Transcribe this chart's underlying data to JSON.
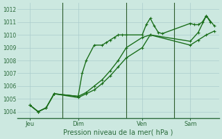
{
  "xlabel": "Pression niveau de la mer( hPa )",
  "bg_color": "#cce8e0",
  "grid_color": "#aacccc",
  "line_color": "#1a6e1a",
  "vline_color": "#2a5a2a",
  "axis_color": "#2a6a3a",
  "ylim": [
    1003.5,
    1012.5
  ],
  "yticks": [
    1004,
    1005,
    1006,
    1007,
    1008,
    1009,
    1010,
    1011,
    1012
  ],
  "xlim": [
    -0.3,
    12.3
  ],
  "xtick_labels": [
    "Jeu",
    "Dim",
    "Ven",
    "Sam"
  ],
  "xtick_pos": [
    0.5,
    3.5,
    7.5,
    10.5
  ],
  "vline_pos": [
    2.5,
    6.5,
    9.5
  ],
  "series1_x": [
    0.5,
    1.0,
    1.5,
    2.0,
    3.5,
    3.75,
    4.0,
    4.5,
    5.0,
    5.25,
    5.5,
    5.75,
    6.0,
    6.25,
    6.5,
    7.5,
    7.75,
    8.0,
    8.25,
    8.5,
    8.75,
    10.5,
    10.75,
    11.0,
    11.25,
    11.5,
    11.75
  ],
  "series1_y": [
    1004.5,
    1004.0,
    1004.3,
    1005.4,
    1005.2,
    1007.0,
    1008.0,
    1009.2,
    1009.2,
    1009.4,
    1009.6,
    1009.8,
    1010.0,
    1010.0,
    1010.0,
    1010.0,
    1010.8,
    1011.3,
    1010.7,
    1010.2,
    1010.1,
    1010.9,
    1010.8,
    1010.8,
    1011.0,
    1011.5,
    1011.0
  ],
  "series2_x": [
    0.5,
    1.0,
    1.5,
    2.0,
    3.5,
    4.0,
    4.5,
    5.0,
    5.5,
    6.0,
    6.5,
    7.5,
    8.0,
    10.5,
    11.0,
    11.5,
    12.0
  ],
  "series2_y": [
    1004.5,
    1004.0,
    1004.3,
    1005.4,
    1005.1,
    1005.4,
    1005.7,
    1006.2,
    1006.8,
    1007.5,
    1008.2,
    1009.0,
    1010.0,
    1009.5,
    1010.2,
    1011.5,
    1010.7
  ],
  "series3_x": [
    0.5,
    1.0,
    1.5,
    2.0,
    3.5,
    4.0,
    4.5,
    5.0,
    5.5,
    6.0,
    6.5,
    7.5,
    8.0,
    10.5,
    11.0,
    11.5,
    12.0
  ],
  "series3_y": [
    1004.5,
    1004.0,
    1004.3,
    1005.4,
    1005.2,
    1005.5,
    1006.0,
    1006.5,
    1007.2,
    1008.0,
    1009.0,
    1009.8,
    1010.0,
    1009.2,
    1009.6,
    1010.0,
    1010.3
  ],
  "markersize": 2.5,
  "linewidth": 1.0
}
